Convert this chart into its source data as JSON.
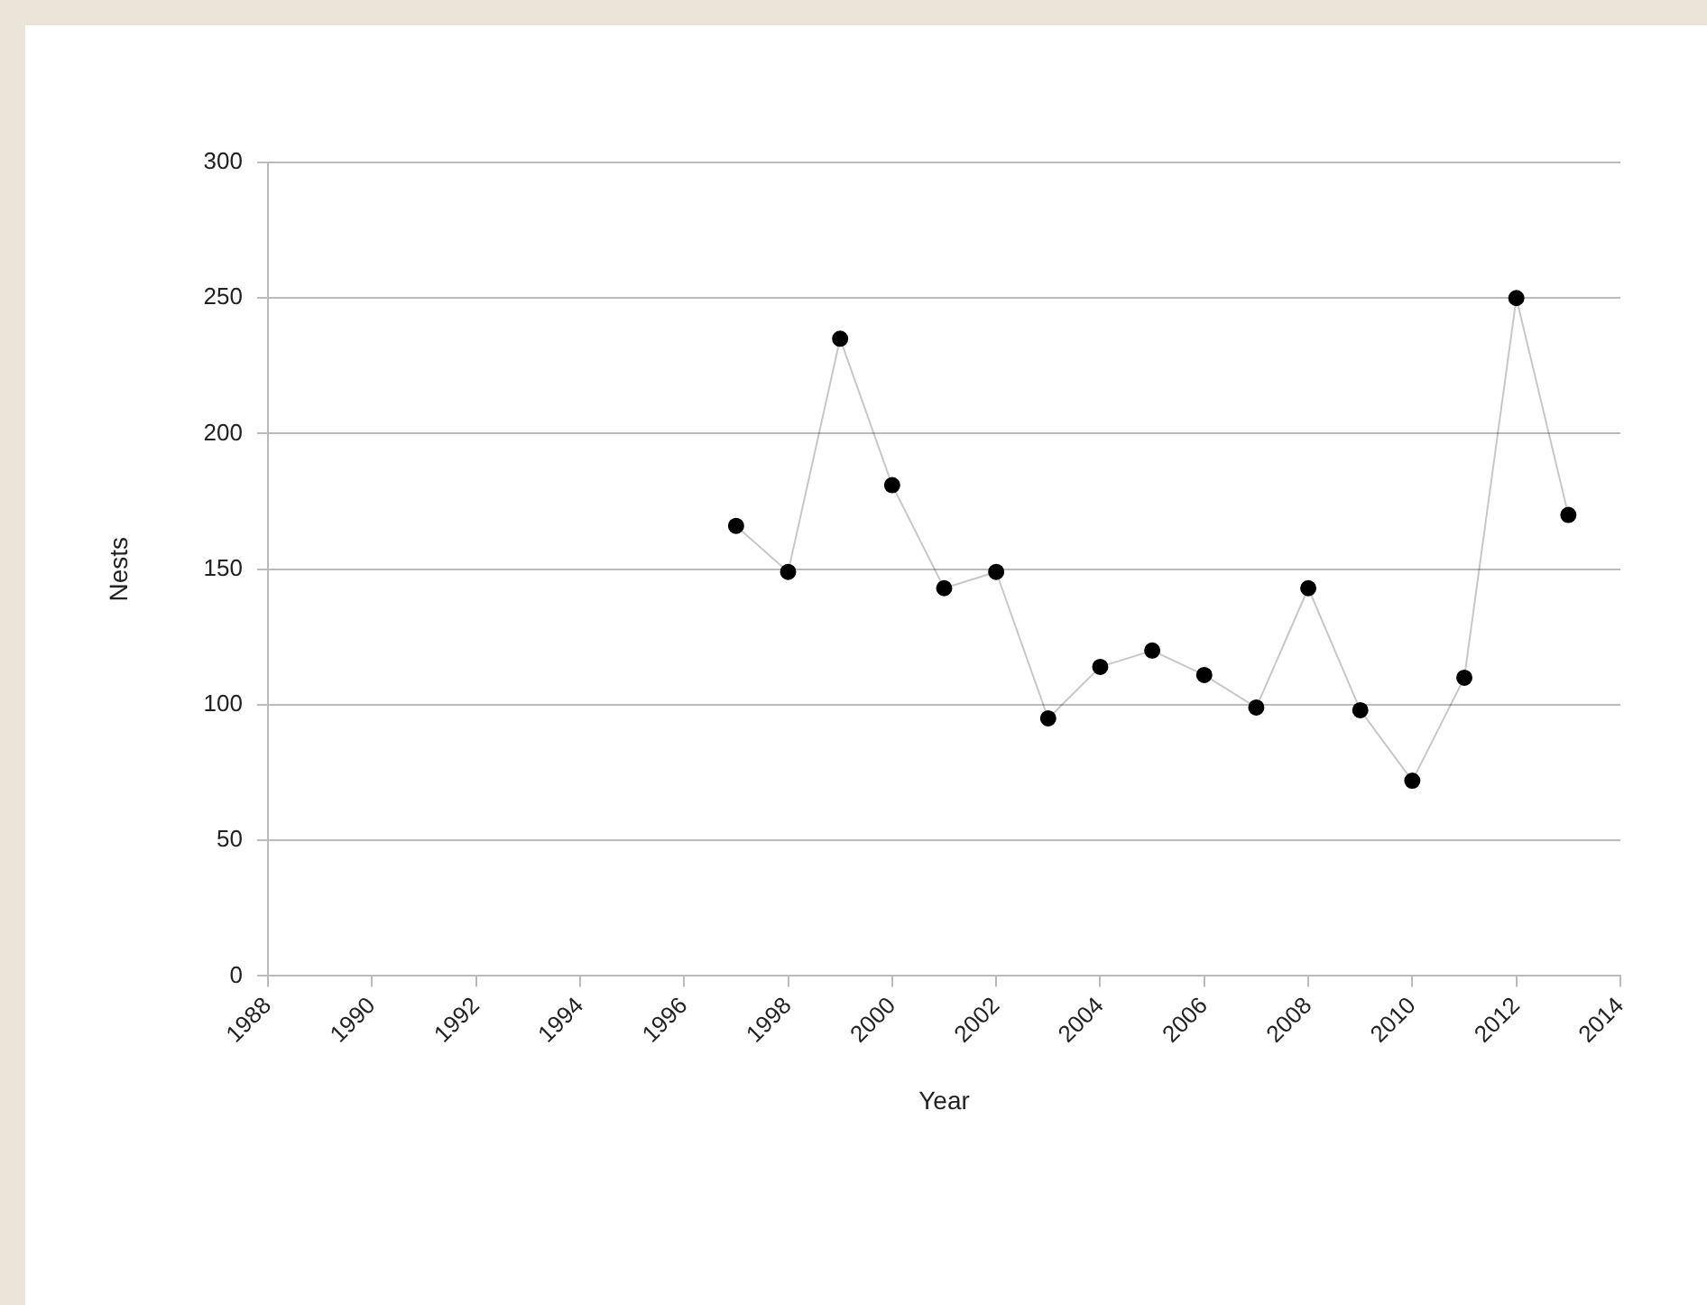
{
  "chart_data": {
    "type": "line",
    "xlabel": "Year",
    "ylabel": "Nests",
    "x": [
      1997,
      1998,
      1999,
      2000,
      2001,
      2002,
      2003,
      2004,
      2005,
      2006,
      2007,
      2008,
      2009,
      2010,
      2011,
      2012,
      2013
    ],
    "series": [
      {
        "color": "#000000",
        "values": [
          166,
          149,
          235,
          181,
          143,
          149,
          95,
          114,
          120,
          111,
          99,
          143,
          98,
          72,
          110,
          250,
          170
        ]
      }
    ],
    "marker": "circle",
    "xlim": [
      1988,
      2014
    ],
    "xticks": [
      1988,
      1990,
      1992,
      1994,
      1996,
      1998,
      2000,
      2002,
      2004,
      2006,
      2008,
      2010,
      2012,
      2014
    ],
    "ylim": [
      0,
      300
    ],
    "yticks": [
      0,
      50,
      100,
      150,
      200,
      250,
      300
    ],
    "grid": "y",
    "legend": false
  }
}
